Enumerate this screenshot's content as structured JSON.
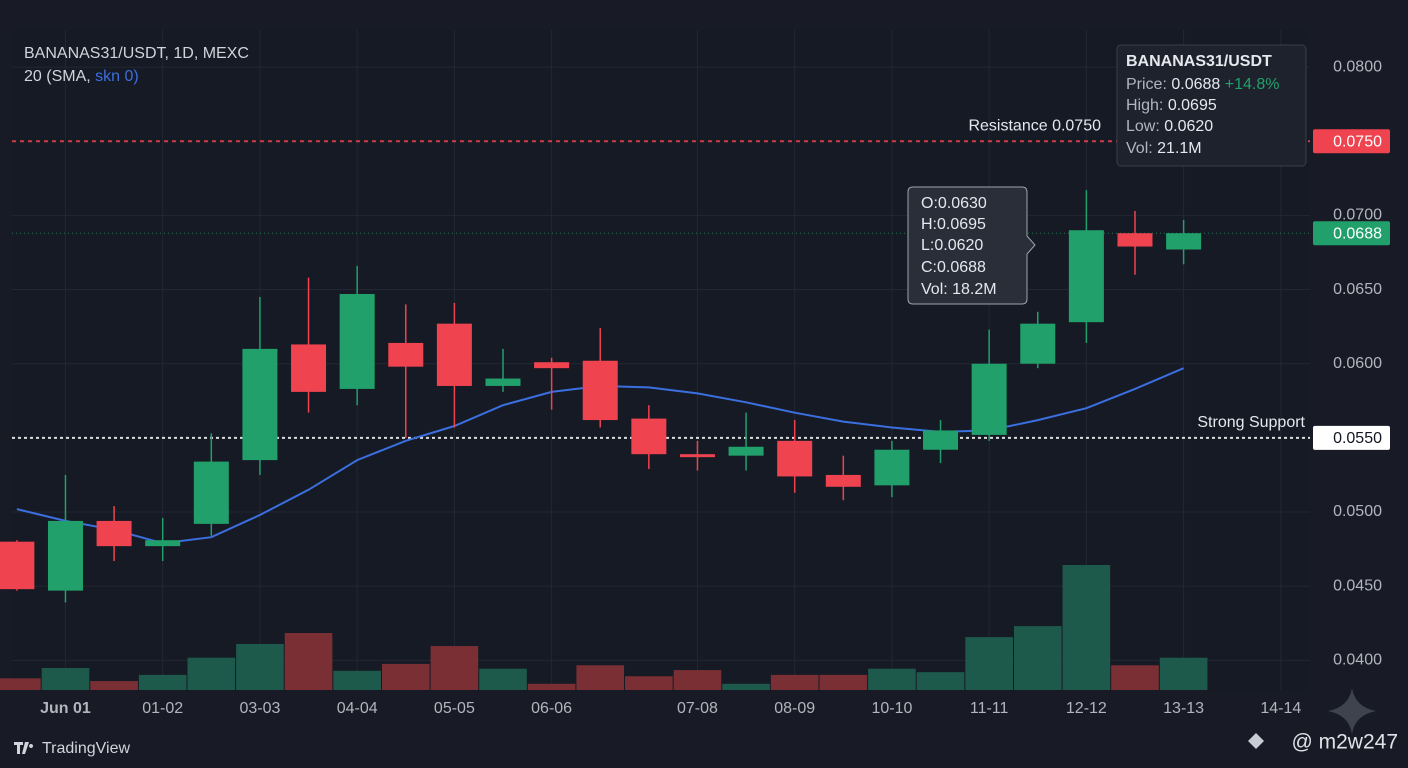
{
  "chart_data": {
    "type": "candlestick",
    "title": "BANANAS31/USDT, 1D, MEXC",
    "indicator_label": "20 (SMA, ",
    "indicator_params": "skn 0)",
    "colors": {
      "up": "#22a06b",
      "down": "#ef4350",
      "up_volume": "#1e5a4c",
      "down_volume": "#7a2f35"
    },
    "open": [
      0.048,
      0.0447,
      0.0494,
      0.0477,
      0.0492,
      0.0535,
      0.0613,
      0.0583,
      0.0614,
      0.0627,
      0.0585,
      0.0601,
      0.0602,
      0.0563,
      0.0539,
      0.0538,
      0.0548,
      0.0525,
      0.0518,
      0.0542,
      0.0552,
      0.06,
      0.0628,
      0.0688,
      0.0677
    ],
    "high": [
      0.0481,
      0.0525,
      0.0504,
      0.0496,
      0.0553,
      0.0645,
      0.0658,
      0.0666,
      0.064,
      0.0641,
      0.061,
      0.0604,
      0.0624,
      0.0572,
      0.0548,
      0.0567,
      0.0562,
      0.0538,
      0.0548,
      0.0562,
      0.0623,
      0.0635,
      0.0717,
      0.0703,
      0.0697
    ],
    "low": [
      0.0447,
      0.0439,
      0.0467,
      0.0467,
      0.0484,
      0.0525,
      0.0567,
      0.0572,
      0.055,
      0.0557,
      0.0581,
      0.0569,
      0.0557,
      0.0529,
      0.0528,
      0.0528,
      0.0513,
      0.0508,
      0.051,
      0.0533,
      0.0548,
      0.0597,
      0.0614,
      0.066,
      0.0667
    ],
    "close": [
      0.0448,
      0.0494,
      0.0477,
      0.0481,
      0.0534,
      0.061,
      0.0581,
      0.0647,
      0.0598,
      0.0585,
      0.059,
      0.0597,
      0.0562,
      0.0539,
      0.0537,
      0.0544,
      0.0524,
      0.0517,
      0.0542,
      0.0555,
      0.06,
      0.0627,
      0.069,
      0.0679,
      0.0688
    ],
    "volume": [
      1.7,
      3.2,
      1.3,
      2.2,
      4.7,
      6.7,
      8.3,
      2.8,
      3.8,
      6.4,
      3.1,
      0.9,
      3.6,
      2.0,
      2.9,
      0.9,
      2.2,
      2.2,
      3.1,
      2.6,
      7.7,
      9.3,
      18.2,
      3.6,
      4.7
    ],
    "sma": {
      "color": "#3b6fe0",
      "values": [
        0.0502,
        0.0494,
        0.0488,
        0.0479,
        0.0483,
        0.0498,
        0.0515,
        0.0535,
        0.0548,
        0.0558,
        0.0572,
        0.0581,
        0.0585,
        0.0584,
        0.058,
        0.0574,
        0.0567,
        0.0561,
        0.0557,
        0.0554,
        0.0555,
        0.0562,
        0.057,
        0.0583,
        0.0597
      ]
    },
    "xlim": [
      -0.1,
      26.6
    ],
    "xticks": [
      {
        "value": 1,
        "label": "Jun 01"
      },
      {
        "value": 3,
        "label": "01-02"
      },
      {
        "value": 5,
        "label": "03-03"
      },
      {
        "value": 7,
        "label": "04-04"
      },
      {
        "value": 9,
        "label": "05-05"
      },
      {
        "value": 11,
        "label": "06-06"
      },
      {
        "value": 14,
        "label": "07-08"
      },
      {
        "value": 16,
        "label": "08-09"
      },
      {
        "value": 18,
        "label": "10-10"
      },
      {
        "value": 20,
        "label": "11-11"
      },
      {
        "value": 22,
        "label": "12-12"
      },
      {
        "value": 24,
        "label": "13-13"
      },
      {
        "value": 26,
        "label": "14-14"
      }
    ],
    "ylim": [
      0.038,
      0.0825
    ],
    "yticks": [
      {
        "value": 0.08,
        "label": "0.0800"
      },
      {
        "value": 0.07,
        "label": "0.0700"
      },
      {
        "value": 0.065,
        "label": "0.0650"
      },
      {
        "value": 0.06,
        "label": "0.0600"
      },
      {
        "value": 0.05,
        "label": "0.0500"
      },
      {
        "value": 0.045,
        "label": "0.0450"
      },
      {
        "value": 0.04,
        "label": "0.0400"
      }
    ],
    "grid": true,
    "horizontal_lines": [
      {
        "value": 0.075,
        "label": "Resistance 0.0750",
        "tag": "0.0750",
        "color": "#ef4350",
        "style": "dashed"
      },
      {
        "value": 0.055,
        "label": "Strong Support",
        "tag": "0.0550",
        "color": "#ffffff",
        "style": "dotted"
      },
      {
        "value": 0.0688,
        "tag": "0.0688",
        "color": "#22a06b",
        "style": "dotted"
      }
    ],
    "info_box": {
      "title": "BANANAS31/USDT",
      "price_label": "Price:",
      "price": "0.0688",
      "change": "+14.8%",
      "high_label": "High:",
      "high": "0.0695",
      "low_label": "Low:",
      "low": "0.0620",
      "vol_label": "Vol:",
      "vol": "21.1M"
    },
    "tooltip": [
      "O:0.0630",
      "H:0.0695",
      "L:0.0620",
      "C:0.0688",
      "Vol: 18.2M"
    ],
    "source": "TradingView",
    "watermark": "@ m2w247"
  }
}
